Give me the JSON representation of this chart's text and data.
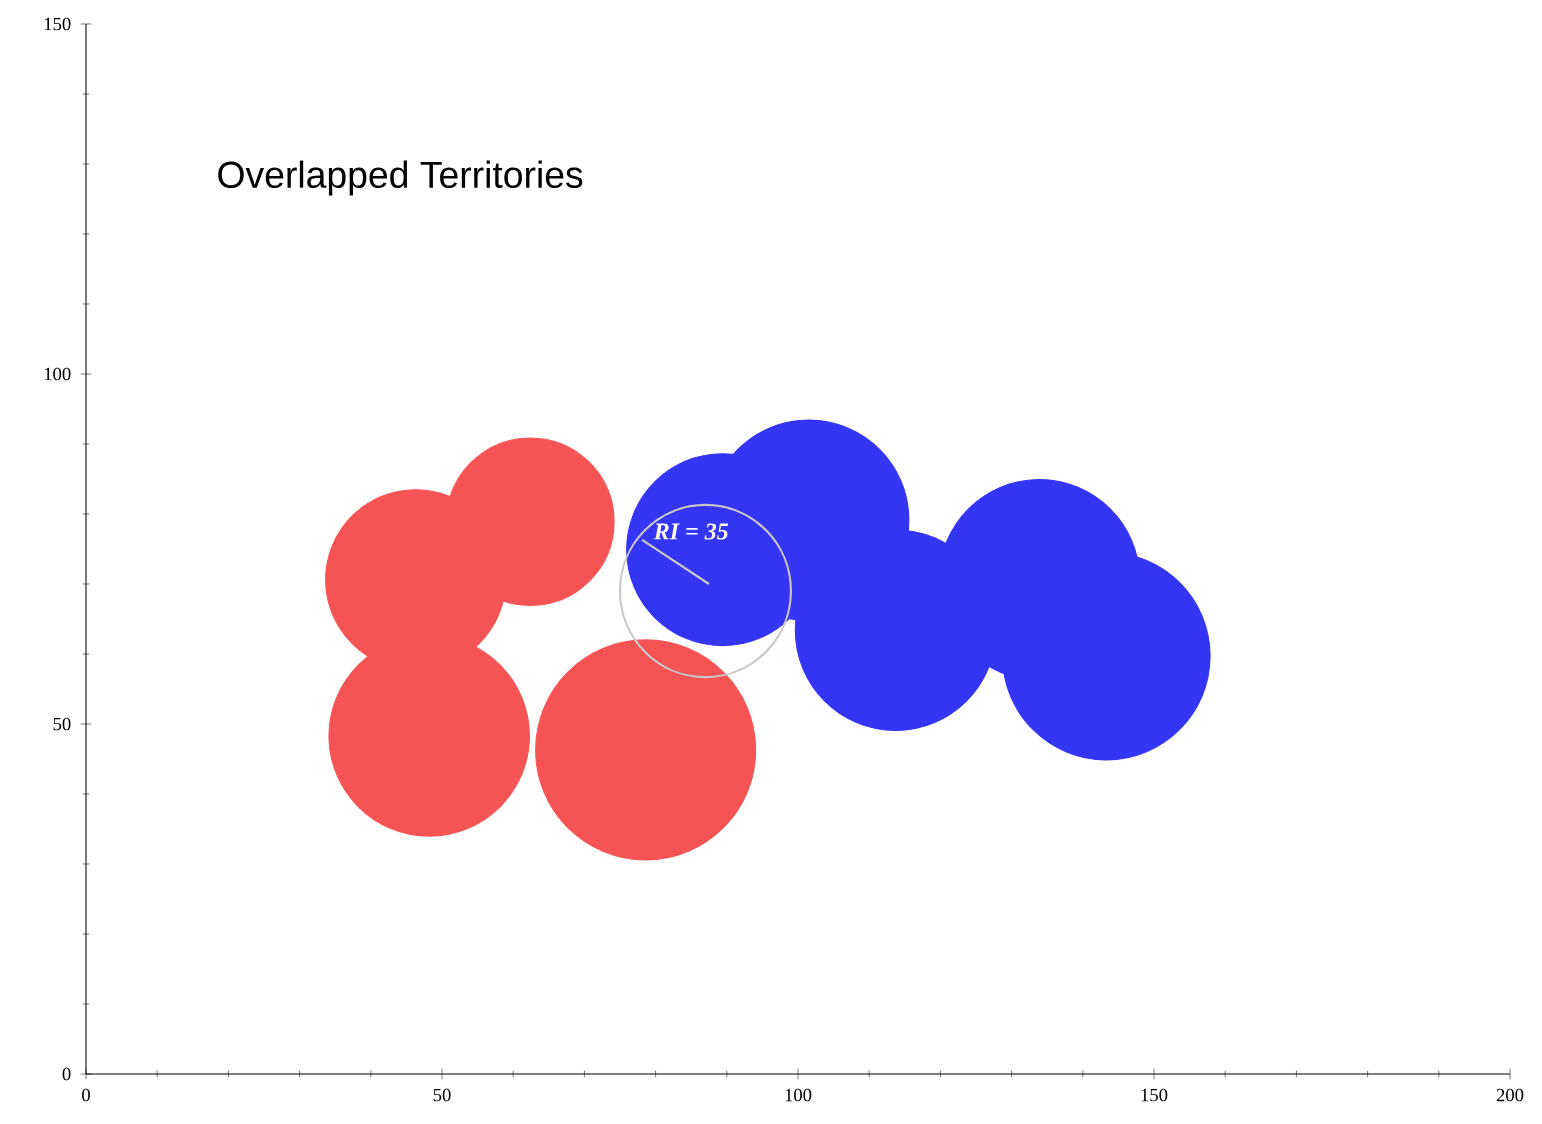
{
  "chart_data": {
    "type": "bubble",
    "title": "Overlapped Territories",
    "xlim": [
      0,
      200
    ],
    "ylim": [
      0,
      150
    ],
    "xticks": [
      0,
      50,
      100,
      150,
      200
    ],
    "yticks": [
      0,
      50,
      100,
      150
    ],
    "series": [
      {
        "color": "#f65454",
        "x": [
          46.3,
          62.4,
          48.2,
          78.6
        ],
        "values": [
          70.6,
          78.9,
          48.3,
          46.3
        ],
        "sizes": [
          0.67,
          0.58,
          0.83,
          1.0
        ]
      },
      {
        "color": "#3535f5",
        "x": [
          89.4,
          101.5,
          113.7,
          133.9,
          143.3
        ],
        "values": [
          74.9,
          79.1,
          63.4,
          70.6,
          59.7
        ],
        "sizes": [
          0.76,
          0.83,
          0.83,
          0.83,
          0.89
        ]
      }
    ],
    "annotations": [
      "RI = 35"
    ]
  }
}
